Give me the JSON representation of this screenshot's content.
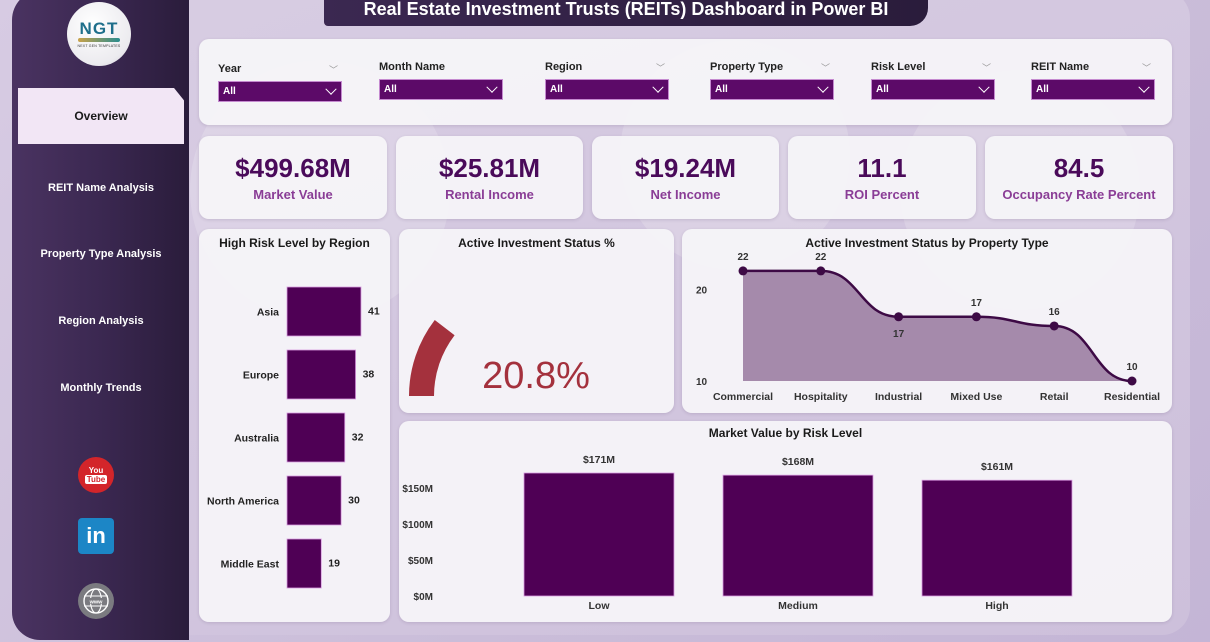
{
  "header": {
    "title": "Real Estate Investment Trusts (REITs) Dashboard in Power BI"
  },
  "logo": {
    "text": "NGT",
    "subtext": "NEXT GEN TEMPLATES"
  },
  "sidebar": {
    "items": [
      {
        "label": "Overview",
        "active": true
      },
      {
        "label": "REIT Name Analysis",
        "active": false
      },
      {
        "label": "Property Type Analysis",
        "active": false
      },
      {
        "label": "Region Analysis",
        "active": false
      },
      {
        "label": "Monthly Trends",
        "active": false
      }
    ],
    "social": [
      {
        "icon": "youtube-icon",
        "top": "You",
        "bottom": "Tube"
      },
      {
        "icon": "linkedin-icon",
        "text": "in"
      },
      {
        "icon": "globe-www-icon",
        "text": "www"
      }
    ]
  },
  "filters": [
    {
      "label": "Year",
      "value": "All"
    },
    {
      "label": "Month Name",
      "value": "All"
    },
    {
      "label": "Region",
      "value": "All"
    },
    {
      "label": "Property Type",
      "value": "All"
    },
    {
      "label": "Risk Level",
      "value": "All"
    },
    {
      "label": "REIT Name",
      "value": "All"
    }
  ],
  "kpis": [
    {
      "value": "$499.68M",
      "label": "Market Value"
    },
    {
      "value": "$25.81M",
      "label": "Rental Income"
    },
    {
      "value": "$19.24M",
      "label": "Net Income"
    },
    {
      "value": "11.1",
      "label": "ROI Percent"
    },
    {
      "value": "84.5",
      "label": "Occupancy Rate Percent"
    }
  ],
  "colors": {
    "bar": "#4f0055",
    "gauge": "#a4313d",
    "area_fill": "#a58aab",
    "line": "#3d0a45",
    "kpi_value": "#4a0a5a",
    "kpi_label": "#8a3d96"
  },
  "chart_data": [
    {
      "type": "bar",
      "orientation": "horizontal",
      "title": "High Risk Level by Region",
      "categories": [
        "Asia",
        "Europe",
        "Australia",
        "North America",
        "Middle East"
      ],
      "values": [
        41,
        38,
        32,
        30,
        19
      ],
      "labels": [
        "41",
        "38",
        "32",
        "30",
        "19"
      ]
    },
    {
      "type": "gauge",
      "title": "Active Investment Status %",
      "value": 20.8,
      "label": "20.8%",
      "min": 0,
      "max": 100
    },
    {
      "type": "area",
      "title": "Active Investment Status by Property Type",
      "categories": [
        "Commercial",
        "Hospitality",
        "Industrial",
        "Mixed Use",
        "Retail",
        "Residential"
      ],
      "values": [
        22,
        22,
        17,
        17,
        16,
        10
      ],
      "labels": [
        "22",
        "22",
        "17",
        "17",
        "16",
        "10"
      ],
      "yticks": [
        "10",
        "20"
      ],
      "ylim": [
        10,
        24
      ]
    },
    {
      "type": "bar",
      "orientation": "vertical",
      "title": "Market Value by Risk Level",
      "categories": [
        "Low",
        "Medium",
        "High"
      ],
      "values": [
        171,
        168,
        161
      ],
      "labels": [
        "$171M",
        "$168M",
        "$161M"
      ],
      "yticks": [
        "$0M",
        "$50M",
        "$100M",
        "$150M"
      ],
      "ylim": [
        0,
        171
      ],
      "yunit": "$M"
    }
  ]
}
